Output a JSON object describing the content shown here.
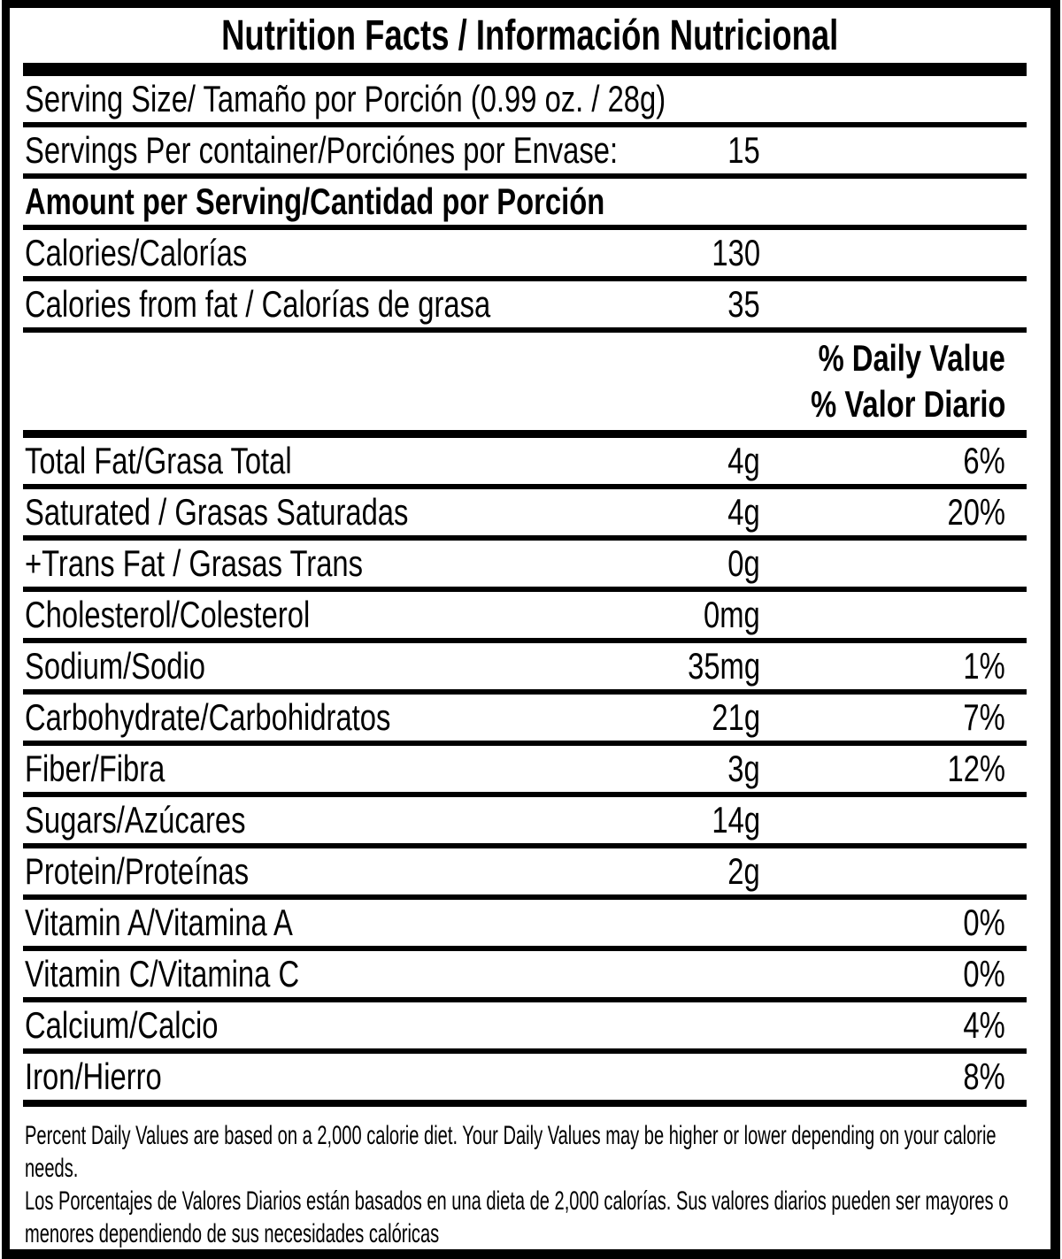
{
  "colors": {
    "ink": "#000000",
    "background": "#ffffff"
  },
  "title": "Nutrition Facts / Información Nutricional",
  "daily_value_header": {
    "line1": "% Daily Value",
    "line2": "% Valor Diario"
  },
  "rows": [
    {
      "label": "Serving Size/ Tamaño por Porción  (0.99 oz. / 28g)",
      "amount": "",
      "percent": ""
    },
    {
      "label": "Servings Per container/Porciónes por Envase:",
      "amount": "15",
      "percent": ""
    },
    {
      "label": "Amount per Serving/Cantidad por Porción",
      "amount": "",
      "percent": ""
    },
    {
      "label": "Calories/Calorías",
      "amount": "130",
      "percent": ""
    },
    {
      "label": "Calories from fat / Calorías de grasa",
      "amount": "35",
      "percent": ""
    },
    {
      "label": "Total Fat/Grasa Total",
      "amount": "4g",
      "percent": "6%"
    },
    {
      "label": "Saturated / Grasas Saturadas",
      "amount": "4g",
      "percent": "20%"
    },
    {
      "label": "+Trans Fat / Grasas Trans",
      "amount": "0g",
      "percent": ""
    },
    {
      "label": "Cholesterol/Colesterol",
      "amount": "0mg",
      "percent": ""
    },
    {
      "label": "Sodium/Sodio",
      "amount": "35mg",
      "percent": "1%"
    },
    {
      "label": "Carbohydrate/Carbohidratos",
      "amount": "21g",
      "percent": "7%"
    },
    {
      "label": "Fiber/Fibra",
      "amount": "3g",
      "percent": "12%"
    },
    {
      "label": "Sugars/Azúcares",
      "amount": "14g",
      "percent": ""
    },
    {
      "label": "Protein/Proteínas",
      "amount": "2g",
      "percent": ""
    },
    {
      "label": "Vitamin A/Vitamina A",
      "amount": "",
      "percent": "0%"
    },
    {
      "label": "Vitamin C/Vitamina C",
      "amount": "",
      "percent": "0%"
    },
    {
      "label": "Calcium/Calcio",
      "amount": "",
      "percent": "4%"
    },
    {
      "label": "Iron/Hierro",
      "amount": "",
      "percent": "8%"
    }
  ],
  "footnotes": {
    "en": "Percent Daily Values are based on a 2,000 calorie diet. Your Daily Values may be higher or lower depending on your calorie needs.",
    "es": "Los Porcentajes de Valores Diarios están basados en una dieta de 2,000 calorías. Sus valores diarios pueden ser mayores o menores dependiendo de sus necesidades calóricas"
  }
}
